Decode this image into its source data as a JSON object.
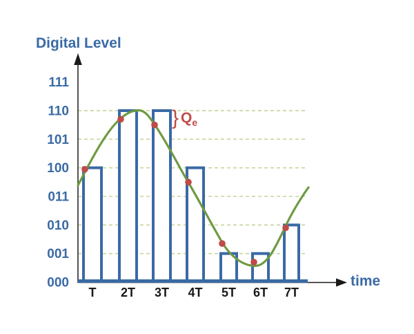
{
  "figure": {
    "y_axis_title": "Digital Level",
    "x_axis_title": "time",
    "annotation": {
      "brace": "}",
      "main": "Q",
      "sub": "e"
    }
  },
  "chart_data": {
    "type": "line",
    "title": "Digital Level",
    "xlabel": "time",
    "ylabel": "Digital Level",
    "x_tick_labels": [
      "T",
      "2T",
      "3T",
      "4T",
      "5T",
      "6T",
      "7T"
    ],
    "y_tick_labels_top_to_bottom": [
      "111",
      "110",
      "101",
      "100",
      "011",
      "010",
      "001",
      "000"
    ],
    "ylim_levels": [
      0,
      7
    ],
    "grid": "dashed horizontal lines at levels 001 through 110",
    "legend": "none",
    "samples": [
      {
        "t": "T",
        "analog_level": 3.95,
        "digital_code": "100"
      },
      {
        "t": "2T",
        "analog_level": 5.7,
        "digital_code": "110"
      },
      {
        "t": "3T",
        "analog_level": 5.5,
        "digital_code": "110"
      },
      {
        "t": "4T",
        "analog_level": 3.5,
        "digital_code": "100"
      },
      {
        "t": "5T",
        "analog_level": 1.35,
        "digital_code": "001"
      },
      {
        "t": "6T",
        "analog_level": 0.7,
        "digital_code": "001"
      },
      {
        "t": "7T",
        "analog_level": 1.9,
        "digital_code": "010"
      }
    ],
    "analog_curve": {
      "shape": "sine-like",
      "start_level": 3.4,
      "peak": {
        "near_t": 2.3,
        "level": 6.0
      },
      "trough": {
        "near_t": 6.2,
        "level": 0.55
      },
      "end_level": 3.3
    },
    "annotation_label": "Qe"
  },
  "colors": {
    "text_blue": "#3a6aa5",
    "bar_blue": "#3a6aa5",
    "curve_green": "#6f9a42",
    "gridline_green": "#c3d69b",
    "dot_red": "#be4b48",
    "axis_black": "#1a1a1a",
    "background": "#ffffff"
  }
}
